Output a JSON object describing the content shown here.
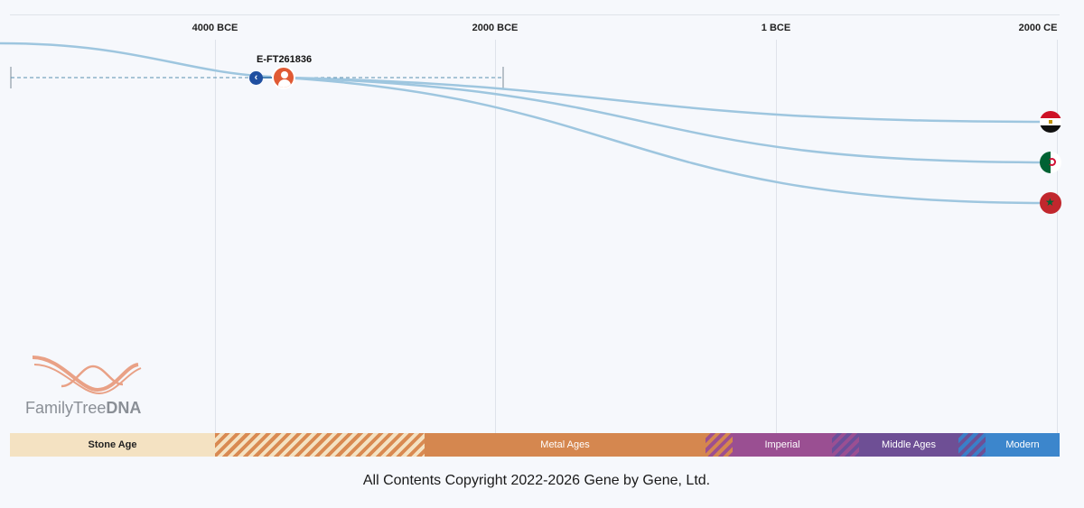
{
  "axis": {
    "ticks": [
      "4000 BCE",
      "2000 BCE",
      "1 BCE",
      "2000 CE"
    ]
  },
  "node": {
    "label": "E-FT261836",
    "back_icon": "chevron-left-icon",
    "avatar_icon": "person-icon",
    "avatar_color": "#e05a34"
  },
  "branches": [
    {
      "country": "Egypt",
      "icon": "egypt-flag-icon"
    },
    {
      "country": "Algeria",
      "icon": "algeria-flag-icon"
    },
    {
      "country": "Morocco",
      "icon": "morocco-flag-icon"
    }
  ],
  "logo": {
    "text_main": "FamilyTree",
    "text_bold": "DNA",
    "icon": "dna-helix-icon"
  },
  "eras": {
    "stone": "Stone Age",
    "metal": "Metal Ages",
    "imperial": "Imperial",
    "middle": "Middle Ages",
    "modern": "Modern"
  },
  "colors": {
    "line": "#9ec6df",
    "back_button": "#1f4fa0",
    "stone": "#f4e2c2",
    "metal": "#d5874f",
    "imperial": "#9a4f92",
    "middle": "#6e4f95",
    "modern": "#3c86cc"
  },
  "footer": {
    "copyright": "All Contents Copyright 2022-2026 Gene by Gene, Ltd."
  }
}
